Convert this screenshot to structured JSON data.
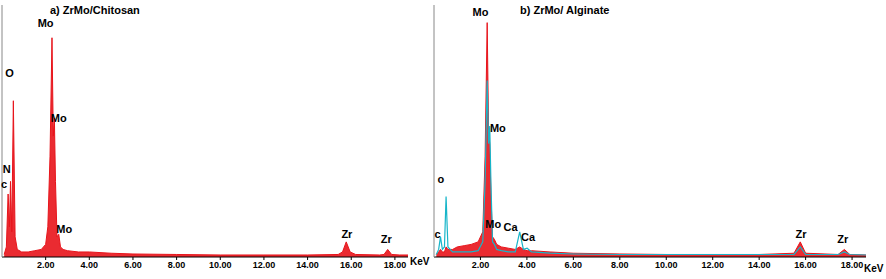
{
  "chart_data": [
    {
      "type": "area",
      "title": "a) ZrMo/Chitosan",
      "xlabel": "KeV",
      "x": [
        0.1,
        0.2,
        0.28,
        0.34,
        0.39,
        0.45,
        0.52,
        0.6,
        0.7,
        0.9,
        1.2,
        1.5,
        1.8,
        2.0,
        2.1,
        2.2,
        2.29,
        2.35,
        2.4,
        2.45,
        2.52,
        2.6,
        2.68,
        2.8,
        3.0,
        3.5,
        4.0,
        5.0,
        6.0,
        8.0,
        10.0,
        12.0,
        14.0,
        15.4,
        15.6,
        15.77,
        15.95,
        16.2,
        17.3,
        17.5,
        17.67,
        17.85,
        18.2,
        18.6
      ],
      "series": [
        {
          "color": "#e8141b",
          "values": [
            1,
            4,
            25,
            12,
            30,
            10,
            62,
            8,
            3,
            2,
            2,
            2.5,
            3,
            5,
            12,
            40,
            87,
            48,
            55,
            30,
            8,
            9,
            4,
            3,
            2.5,
            2,
            2,
            1.5,
            1.2,
            1,
            0.8,
            0.8,
            0.8,
            1,
            2,
            6,
            2,
            1,
            0.8,
            1,
            3,
            1,
            0.8,
            0.8
          ]
        }
      ],
      "xlim": [
        0,
        18.6
      ],
      "xticks": [
        {
          "value": 2,
          "label": "2.00"
        },
        {
          "value": 4,
          "label": "4.00"
        },
        {
          "value": 6,
          "label": "6.00"
        },
        {
          "value": 8,
          "label": "8.00"
        },
        {
          "value": 10,
          "label": "10.00"
        },
        {
          "value": 12,
          "label": "12.00"
        },
        {
          "value": 14,
          "label": "14.00"
        },
        {
          "value": 16,
          "label": "16.00"
        },
        {
          "value": 18,
          "label": "18.00"
        }
      ],
      "ylim": [
        0,
        100
      ],
      "tick_labels": "x",
      "grid": false,
      "annotations": [
        {
          "text": "c",
          "x": 0.1,
          "y": 29
        },
        {
          "text": "N",
          "x": 0.22,
          "y": 35
        },
        {
          "text": "O",
          "x": 0.35,
          "y": 73
        },
        {
          "text": "Mo",
          "x": 2.0,
          "y": 93
        },
        {
          "text": "Mo",
          "x": 2.6,
          "y": 55
        },
        {
          "text": "Mo",
          "x": 2.85,
          "y": 11
        },
        {
          "text": "Zr",
          "x": 15.8,
          "y": 9
        },
        {
          "text": "Zr",
          "x": 17.6,
          "y": 7
        }
      ]
    },
    {
      "type": "area",
      "title": "b) ZrMo/ Alginate",
      "xlabel": "KeV",
      "x": [
        0.1,
        0.2,
        0.28,
        0.36,
        0.45,
        0.52,
        0.6,
        0.8,
        1.0,
        1.3,
        1.6,
        1.9,
        2.1,
        2.2,
        2.29,
        2.35,
        2.4,
        2.45,
        2.52,
        2.6,
        2.7,
        2.9,
        3.2,
        3.5,
        3.69,
        3.85,
        4.01,
        4.2,
        5.0,
        6.0,
        8.0,
        10.0,
        12.0,
        14.0,
        15.5,
        15.77,
        16.0,
        17.4,
        17.67,
        17.9,
        18.6
      ],
      "series": [
        {
          "color": "#e8141b",
          "values": [
            1,
            2,
            3,
            2,
            2,
            4,
            3,
            3,
            4,
            4.5,
            5,
            6,
            10,
            40,
            93,
            50,
            45,
            25,
            8,
            7,
            5,
            4,
            3.5,
            3,
            4,
            3,
            2.5,
            2.5,
            2,
            1.5,
            1.2,
            1,
            1,
            1,
            1.5,
            6,
            1.5,
            1,
            3,
            1,
            0.8
          ]
        },
        {
          "type": "line",
          "color": "#17b5c9",
          "values": [
            1,
            3,
            8,
            3,
            4,
            24,
            4,
            2,
            2,
            2,
            2,
            2.5,
            6,
            30,
            70,
            45,
            52,
            30,
            6,
            5,
            3,
            2.5,
            2,
            2,
            10,
            3,
            3.5,
            2,
            1.5,
            1.2,
            1,
            1,
            1,
            1,
            1,
            4,
            1,
            1,
            2,
            1,
            0.8
          ]
        }
      ],
      "xlim": [
        0,
        18.6
      ],
      "xticks": [
        {
          "value": 2,
          "label": "2.00"
        },
        {
          "value": 4,
          "label": "4.00"
        },
        {
          "value": 6,
          "label": "6.00"
        },
        {
          "value": 8,
          "label": "8.00"
        },
        {
          "value": 10,
          "label": "10.00"
        },
        {
          "value": 12,
          "label": "12.00"
        },
        {
          "value": 14,
          "label": "14.00"
        },
        {
          "value": 16,
          "label": "16.00"
        },
        {
          "value": 18,
          "label": "18.00"
        }
      ],
      "ylim": [
        0,
        100
      ],
      "tick_labels": "x",
      "grid": false,
      "annotations": [
        {
          "text": "c",
          "x": 0.15,
          "y": 9
        },
        {
          "text": "o",
          "x": 0.3,
          "y": 31
        },
        {
          "text": "Mo",
          "x": 2.0,
          "y": 97
        },
        {
          "text": "Mo",
          "x": 2.75,
          "y": 51
        },
        {
          "text": "Mo",
          "x": 2.55,
          "y": 13
        },
        {
          "text": "Ca",
          "x": 3.3,
          "y": 12
        },
        {
          "text": "Ca",
          "x": 4.05,
          "y": 8
        },
        {
          "text": "Zr",
          "x": 15.8,
          "y": 9
        },
        {
          "text": "Zr",
          "x": 17.6,
          "y": 7
        }
      ]
    }
  ]
}
